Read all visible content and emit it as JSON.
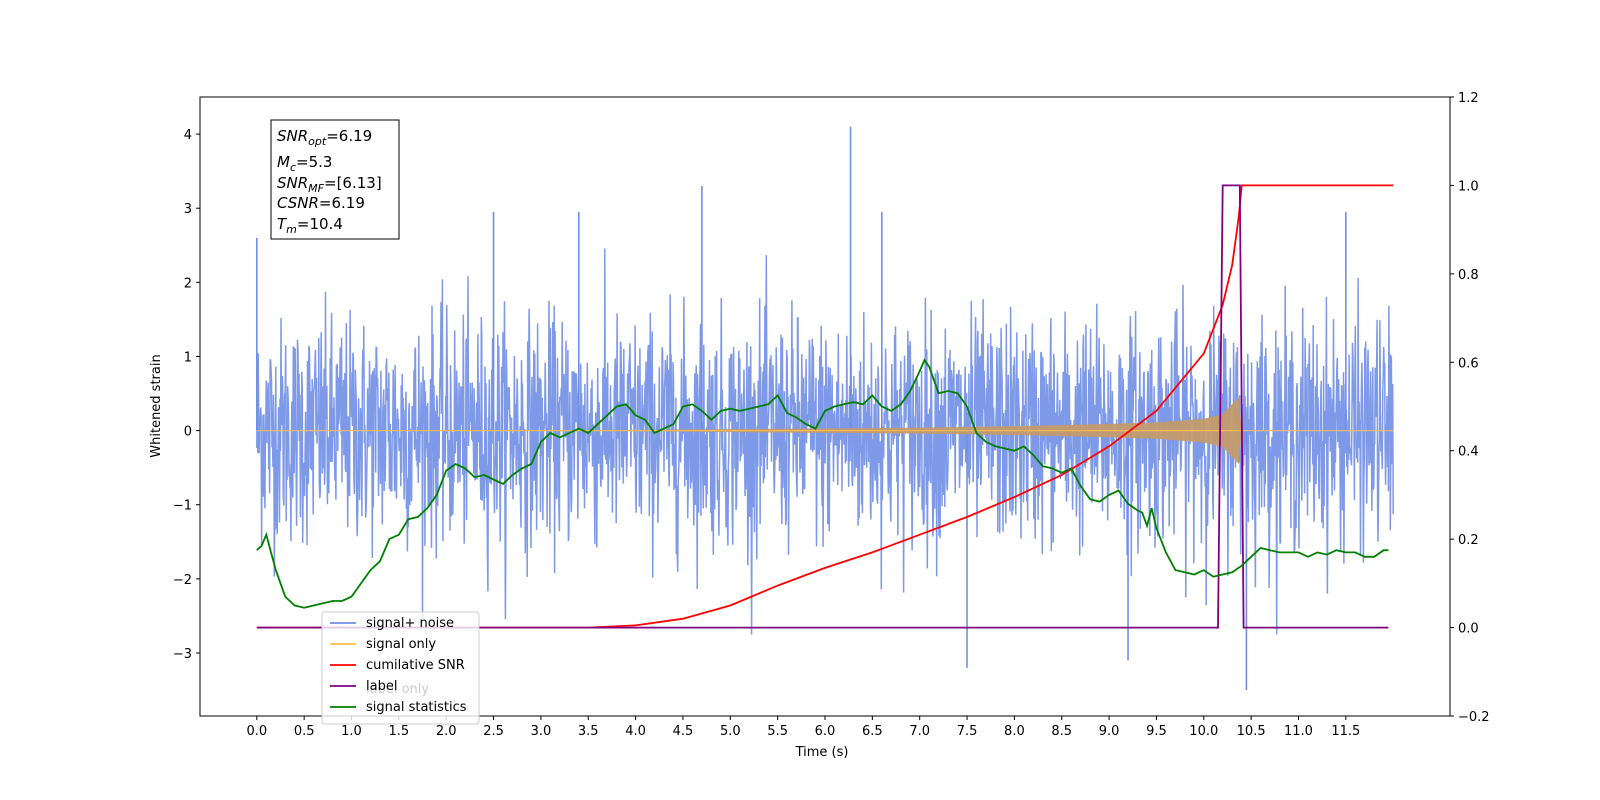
{
  "chart_data": {
    "type": "line",
    "xlabel": "Time (s)",
    "ylabel": "Whitened strain",
    "xlim": [
      -0.6,
      12.6
    ],
    "ylim": [
      -3.85,
      4.5
    ],
    "ylim_right": [
      -0.2,
      1.2
    ],
    "x_ticks": [
      "0.0",
      "0.5",
      "1.0",
      "1.5",
      "2.0",
      "2.5",
      "3.0",
      "3.5",
      "4.0",
      "4.5",
      "5.0",
      "5.5",
      "6.0",
      "6.5",
      "7.0",
      "7.5",
      "8.0",
      "8.5",
      "9.0",
      "9.5",
      "10.0",
      "10.5",
      "11.0",
      "11.5"
    ],
    "y_ticks_left": [
      "−3",
      "−2",
      "−1",
      "0",
      "1",
      "2",
      "3",
      "4"
    ],
    "y_ticks_right": [
      "−0.2",
      "0.0",
      "0.2",
      "0.4",
      "0.6",
      "0.8",
      "1.0",
      "1.2"
    ],
    "annotation": {
      "snr_opt": {
        "base": "SNR",
        "sub": "opt",
        "rest": "=6.19"
      },
      "mc": {
        "base": "M",
        "sub": "c",
        "rest": "=5.3"
      },
      "snr_mf": {
        "base": "SNR",
        "sub": "MF",
        "rest": "=[6.13]"
      },
      "csnr": {
        "base": "CSNR",
        "sub": "",
        "rest": "=6.19"
      },
      "tm": {
        "base": "T",
        "sub": "m",
        "rest": "=10.4"
      }
    },
    "legend": {
      "placement": "lower-left",
      "entries": [
        {
          "label": "signal+ noise",
          "color": "#6f8ee6"
        },
        {
          "label": "signal only",
          "color": "#ffc04d"
        },
        {
          "label": "cumilative SNR",
          "color": "#ff0000"
        },
        {
          "label": "label",
          "color": "#800080"
        },
        {
          "label": "signal statistics",
          "color": "#008000"
        }
      ],
      "hidden_entry_text": "label only"
    },
    "series": [
      {
        "name": "signal+ noise",
        "axis": "left",
        "color": "#6f8ee6",
        "description": "noisy whitened strain, approx ±1.5 typical with spikes to ±3",
        "notable_extremes": [
          {
            "x": 0.0,
            "y": 2.6
          },
          {
            "x": 6.27,
            "y": 4.1
          },
          {
            "x": 7.5,
            "y": -3.2
          },
          {
            "x": 10.45,
            "y": -3.5
          },
          {
            "x": 2.5,
            "y": 2.95
          },
          {
            "x": 3.4,
            "y": 2.95
          },
          {
            "x": 4.7,
            "y": 3.3
          },
          {
            "x": 6.6,
            "y": 2.95
          },
          {
            "x": 9.2,
            "y": -3.1
          },
          {
            "x": 11.5,
            "y": 2.95
          }
        ]
      },
      {
        "name": "signal only",
        "axis": "left",
        "color": "#ffc04d",
        "envelope": [
          [
            0.0,
            0.0
          ],
          [
            4.0,
            0.01
          ],
          [
            5.0,
            0.02
          ],
          [
            6.0,
            0.03
          ],
          [
            7.0,
            0.04
          ],
          [
            8.0,
            0.06
          ],
          [
            9.0,
            0.09
          ],
          [
            9.5,
            0.11
          ],
          [
            10.0,
            0.16
          ],
          [
            10.2,
            0.22
          ],
          [
            10.37,
            0.45
          ],
          [
            10.4,
            0.0
          ],
          [
            12.0,
            0.0
          ]
        ]
      },
      {
        "name": "cumilative SNR",
        "axis": "right",
        "color": "#ff0000",
        "points": [
          [
            0.0,
            0.0
          ],
          [
            3.0,
            0.0
          ],
          [
            3.5,
            0.0
          ],
          [
            4.0,
            0.005
          ],
          [
            4.5,
            0.02
          ],
          [
            5.0,
            0.05
          ],
          [
            5.5,
            0.095
          ],
          [
            6.0,
            0.135
          ],
          [
            6.5,
            0.17
          ],
          [
            7.0,
            0.21
          ],
          [
            7.5,
            0.25
          ],
          [
            8.0,
            0.295
          ],
          [
            8.5,
            0.345
          ],
          [
            9.0,
            0.41
          ],
          [
            9.5,
            0.49
          ],
          [
            10.0,
            0.62
          ],
          [
            10.2,
            0.73
          ],
          [
            10.3,
            0.82
          ],
          [
            10.37,
            0.93
          ],
          [
            10.4,
            1.0
          ],
          [
            12.0,
            1.0
          ]
        ]
      },
      {
        "name": "label",
        "axis": "right",
        "color": "#800080",
        "points": [
          [
            0.0,
            0.0
          ],
          [
            10.15,
            0.0
          ],
          [
            10.2,
            1.0
          ],
          [
            10.38,
            1.0
          ],
          [
            10.42,
            0.0
          ],
          [
            11.95,
            0.0
          ]
        ]
      },
      {
        "name": "signal statistics",
        "axis": "right",
        "color": "#008000",
        "points": [
          [
            0.0,
            0.175
          ],
          [
            0.05,
            0.185
          ],
          [
            0.1,
            0.21
          ],
          [
            0.15,
            0.17
          ],
          [
            0.2,
            0.13
          ],
          [
            0.3,
            0.07
          ],
          [
            0.4,
            0.05
          ],
          [
            0.5,
            0.045
          ],
          [
            0.6,
            0.05
          ],
          [
            0.7,
            0.055
          ],
          [
            0.8,
            0.06
          ],
          [
            0.9,
            0.06
          ],
          [
            1.0,
            0.07
          ],
          [
            1.1,
            0.1
          ],
          [
            1.2,
            0.13
          ],
          [
            1.3,
            0.15
          ],
          [
            1.4,
            0.2
          ],
          [
            1.5,
            0.21
          ],
          [
            1.6,
            0.245
          ],
          [
            1.7,
            0.25
          ],
          [
            1.8,
            0.27
          ],
          [
            1.9,
            0.3
          ],
          [
            2.0,
            0.355
          ],
          [
            2.1,
            0.37
          ],
          [
            2.2,
            0.36
          ],
          [
            2.3,
            0.34
          ],
          [
            2.4,
            0.345
          ],
          [
            2.5,
            0.335
          ],
          [
            2.6,
            0.325
          ],
          [
            2.7,
            0.345
          ],
          [
            2.8,
            0.36
          ],
          [
            2.9,
            0.37
          ],
          [
            3.0,
            0.42
          ],
          [
            3.1,
            0.44
          ],
          [
            3.2,
            0.43
          ],
          [
            3.4,
            0.45
          ],
          [
            3.5,
            0.44
          ],
          [
            3.6,
            0.46
          ],
          [
            3.7,
            0.48
          ],
          [
            3.8,
            0.5
          ],
          [
            3.9,
            0.505
          ],
          [
            4.0,
            0.48
          ],
          [
            4.1,
            0.47
          ],
          [
            4.2,
            0.44
          ],
          [
            4.3,
            0.45
          ],
          [
            4.4,
            0.46
          ],
          [
            4.5,
            0.5
          ],
          [
            4.6,
            0.505
          ],
          [
            4.7,
            0.49
          ],
          [
            4.8,
            0.47
          ],
          [
            4.9,
            0.49
          ],
          [
            5.0,
            0.495
          ],
          [
            5.1,
            0.49
          ],
          [
            5.2,
            0.495
          ],
          [
            5.3,
            0.5
          ],
          [
            5.4,
            0.505
          ],
          [
            5.5,
            0.525
          ],
          [
            5.6,
            0.485
          ],
          [
            5.7,
            0.475
          ],
          [
            5.8,
            0.46
          ],
          [
            5.9,
            0.45
          ],
          [
            6.0,
            0.49
          ],
          [
            6.1,
            0.5
          ],
          [
            6.2,
            0.505
          ],
          [
            6.3,
            0.51
          ],
          [
            6.4,
            0.505
          ],
          [
            6.5,
            0.525
          ],
          [
            6.6,
            0.5
          ],
          [
            6.7,
            0.49
          ],
          [
            6.8,
            0.505
          ],
          [
            6.9,
            0.535
          ],
          [
            7.0,
            0.58
          ],
          [
            7.05,
            0.605
          ],
          [
            7.1,
            0.59
          ],
          [
            7.2,
            0.53
          ],
          [
            7.3,
            0.535
          ],
          [
            7.4,
            0.53
          ],
          [
            7.5,
            0.5
          ],
          [
            7.6,
            0.44
          ],
          [
            7.7,
            0.42
          ],
          [
            7.8,
            0.41
          ],
          [
            7.9,
            0.405
          ],
          [
            8.0,
            0.4
          ],
          [
            8.1,
            0.41
          ],
          [
            8.2,
            0.39
          ],
          [
            8.3,
            0.365
          ],
          [
            8.4,
            0.36
          ],
          [
            8.5,
            0.35
          ],
          [
            8.6,
            0.36
          ],
          [
            8.7,
            0.32
          ],
          [
            8.8,
            0.29
          ],
          [
            8.9,
            0.285
          ],
          [
            9.0,
            0.3
          ],
          [
            9.1,
            0.31
          ],
          [
            9.2,
            0.28
          ],
          [
            9.3,
            0.265
          ],
          [
            9.35,
            0.26
          ],
          [
            9.4,
            0.23
          ],
          [
            9.45,
            0.27
          ],
          [
            9.5,
            0.225
          ],
          [
            9.6,
            0.17
          ],
          [
            9.7,
            0.13
          ],
          [
            9.8,
            0.125
          ],
          [
            9.9,
            0.12
          ],
          [
            10.0,
            0.13
          ],
          [
            10.1,
            0.115
          ],
          [
            10.2,
            0.12
          ],
          [
            10.3,
            0.125
          ],
          [
            10.4,
            0.14
          ],
          [
            10.5,
            0.16
          ],
          [
            10.6,
            0.18
          ],
          [
            10.7,
            0.175
          ],
          [
            10.8,
            0.17
          ],
          [
            10.9,
            0.17
          ],
          [
            11.0,
            0.17
          ],
          [
            11.1,
            0.16
          ],
          [
            11.2,
            0.17
          ],
          [
            11.3,
            0.165
          ],
          [
            11.4,
            0.175
          ],
          [
            11.5,
            0.17
          ],
          [
            11.6,
            0.17
          ],
          [
            11.7,
            0.16
          ],
          [
            11.8,
            0.16
          ],
          [
            11.9,
            0.175
          ],
          [
            11.95,
            0.175
          ]
        ]
      }
    ]
  }
}
